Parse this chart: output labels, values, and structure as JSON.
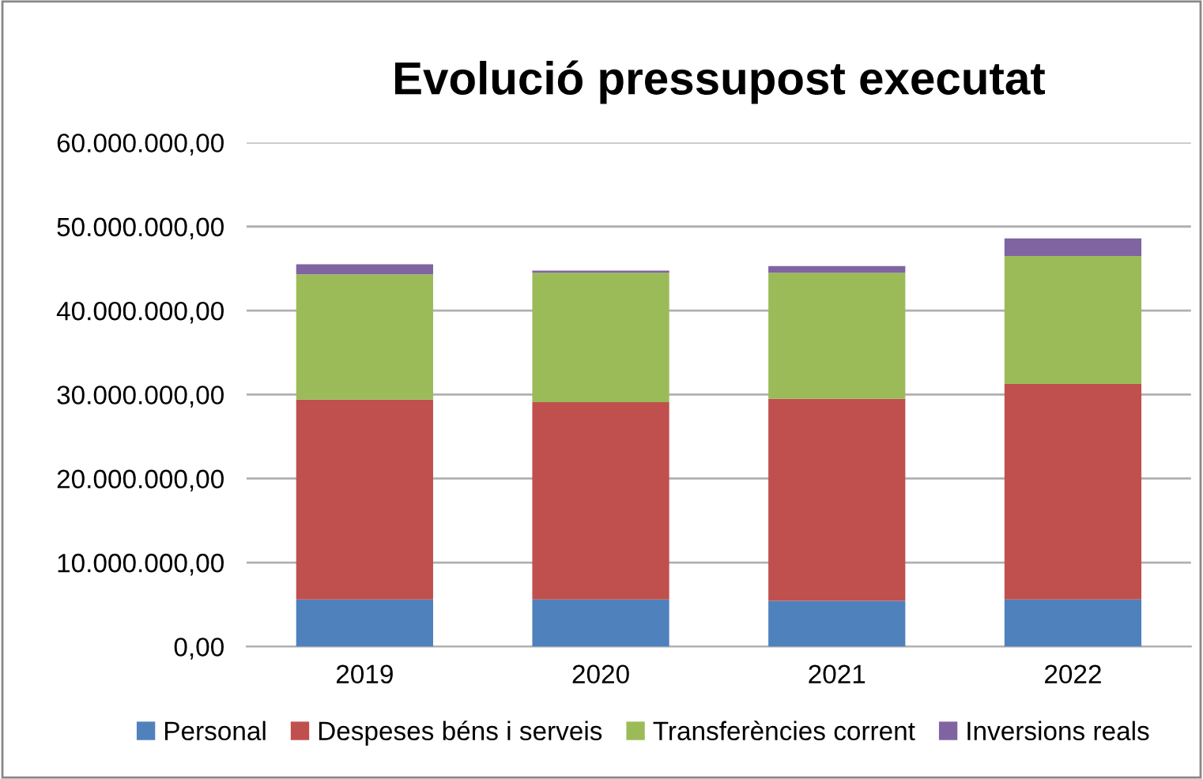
{
  "chart_data": {
    "type": "bar",
    "title": "Evolució pressupost executat",
    "stacked": true,
    "categories": [
      "2019",
      "2020",
      "2021",
      "2022"
    ],
    "series": [
      {
        "name": "Personal",
        "color": "#4f81bd",
        "values": [
          5600000,
          5600000,
          5450000,
          5600000
        ]
      },
      {
        "name": "Despeses béns i serveis",
        "color": "#c0504d",
        "values": [
          23800000,
          23500000,
          24050000,
          25650000
        ]
      },
      {
        "name": "Transferències corrent",
        "color": "#9bbb59",
        "values": [
          14900000,
          15400000,
          15000000,
          15250000
        ]
      },
      {
        "name": "Inversions reals",
        "color": "#8064a2",
        "values": [
          1200000,
          250000,
          800000,
          2100000
        ]
      }
    ],
    "ylim": [
      0,
      60000000
    ],
    "yticks": [
      {
        "value": 0,
        "label": "0,00"
      },
      {
        "value": 10000000,
        "label": "10.000.000,00"
      },
      {
        "value": 20000000,
        "label": "20.000.000,00"
      },
      {
        "value": 30000000,
        "label": "30.000.000,00"
      },
      {
        "value": 40000000,
        "label": "40.000.000,00"
      },
      {
        "value": 50000000,
        "label": "50.000.000,00"
      },
      {
        "value": 60000000,
        "label": "60.000.000,00"
      }
    ],
    "grid": "y",
    "legend": "bottom"
  }
}
